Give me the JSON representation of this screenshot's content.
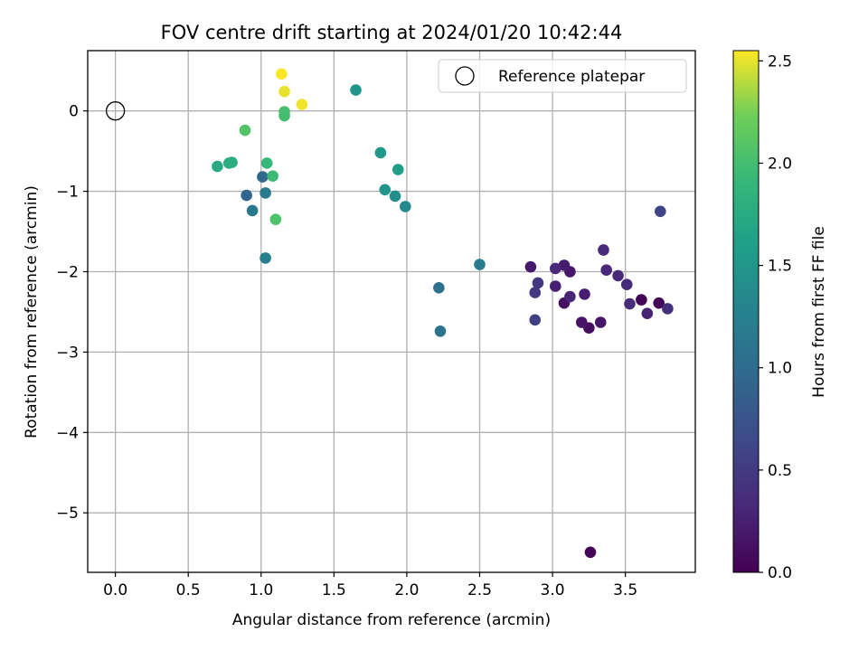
{
  "chart_data": {
    "type": "scatter",
    "title": "FOV centre drift starting at 2024/01/20 10:42:44",
    "xlabel": "Angular distance from reference (arcmin)",
    "ylabel": "Rotation from reference (arcmin)",
    "xlim": [
      -0.19,
      3.98
    ],
    "ylim": [
      -5.74,
      0.75
    ],
    "x_ticks": [
      0.0,
      0.5,
      1.0,
      1.5,
      2.0,
      2.5,
      3.0,
      3.5
    ],
    "x_tick_labels": [
      "0.0",
      "0.5",
      "1.0",
      "1.5",
      "2.0",
      "2.5",
      "3.0",
      "3.5"
    ],
    "y_ticks": [
      0,
      -1,
      -2,
      -3,
      -4,
      -5
    ],
    "y_tick_labels": [
      "0",
      "−1",
      "−2",
      "−3",
      "−4",
      "−5"
    ],
    "grid": true,
    "legend": {
      "position": "top-right",
      "entries": [
        "Reference platepar"
      ]
    },
    "reference_point": {
      "x": 0.0,
      "y": 0.0
    },
    "colorbar": {
      "label": "Hours from first FF file",
      "colormap": "viridis",
      "range": [
        0.0,
        2.55
      ],
      "ticks": [
        0.0,
        0.5,
        1.0,
        1.5,
        2.0,
        2.5
      ],
      "tick_labels": [
        "0.0",
        "0.5",
        "1.0",
        "1.5",
        "2.0",
        "2.5"
      ]
    },
    "points": [
      {
        "x": 3.26,
        "y": -5.49,
        "c": 0.02
      },
      {
        "x": 3.61,
        "y": -2.35,
        "c": 0.03
      },
      {
        "x": 3.73,
        "y": -2.39,
        "c": 0.04
      },
      {
        "x": 3.25,
        "y": -2.7,
        "c": 0.1
      },
      {
        "x": 3.08,
        "y": -2.39,
        "c": 0.12
      },
      {
        "x": 3.2,
        "y": -2.63,
        "c": 0.15
      },
      {
        "x": 3.33,
        "y": -2.63,
        "c": 0.17
      },
      {
        "x": 3.12,
        "y": -2.0,
        "c": 0.18
      },
      {
        "x": 2.85,
        "y": -1.94,
        "c": 0.2
      },
      {
        "x": 3.08,
        "y": -1.92,
        "c": 0.22
      },
      {
        "x": 3.22,
        "y": -2.28,
        "c": 0.24
      },
      {
        "x": 3.02,
        "y": -2.18,
        "c": 0.26
      },
      {
        "x": 3.65,
        "y": -2.52,
        "c": 0.28
      },
      {
        "x": 3.12,
        "y": -2.31,
        "c": 0.3
      },
      {
        "x": 3.02,
        "y": -1.96,
        "c": 0.32
      },
      {
        "x": 3.37,
        "y": -1.98,
        "c": 0.33
      },
      {
        "x": 3.45,
        "y": -2.05,
        "c": 0.34
      },
      {
        "x": 3.35,
        "y": -1.73,
        "c": 0.35
      },
      {
        "x": 3.51,
        "y": -2.16,
        "c": 0.37
      },
      {
        "x": 3.53,
        "y": -2.4,
        "c": 0.38
      },
      {
        "x": 3.79,
        "y": -2.46,
        "c": 0.4
      },
      {
        "x": 2.9,
        "y": -2.14,
        "c": 0.45
      },
      {
        "x": 2.88,
        "y": -2.26,
        "c": 0.48
      },
      {
        "x": 2.88,
        "y": -2.6,
        "c": 0.55
      },
      {
        "x": 3.74,
        "y": -1.25,
        "c": 0.58
      },
      {
        "x": 0.9,
        "y": -1.05,
        "c": 0.95
      },
      {
        "x": 1.01,
        "y": -0.82,
        "c": 0.97
      },
      {
        "x": 2.22,
        "y": -2.2,
        "c": 1.05
      },
      {
        "x": 2.23,
        "y": -2.74,
        "c": 1.1
      },
      {
        "x": 0.94,
        "y": -1.24,
        "c": 1.15
      },
      {
        "x": 1.03,
        "y": -1.02,
        "c": 1.18
      },
      {
        "x": 2.5,
        "y": -1.91,
        "c": 1.2
      },
      {
        "x": 1.03,
        "y": -1.83,
        "c": 1.25
      },
      {
        "x": 1.99,
        "y": -1.19,
        "c": 1.35
      },
      {
        "x": 1.92,
        "y": -1.06,
        "c": 1.4
      },
      {
        "x": 1.85,
        "y": -0.98,
        "c": 1.48
      },
      {
        "x": 1.82,
        "y": -0.52,
        "c": 1.52
      },
      {
        "x": 1.94,
        "y": -0.73,
        "c": 1.58
      },
      {
        "x": 1.65,
        "y": 0.26,
        "c": 1.5
      },
      {
        "x": 0.7,
        "y": -0.69,
        "c": 1.72
      },
      {
        "x": 0.78,
        "y": -0.65,
        "c": 1.75
      },
      {
        "x": 0.8,
        "y": -0.64,
        "c": 1.78
      },
      {
        "x": 1.04,
        "y": -0.65,
        "c": 1.92
      },
      {
        "x": 1.08,
        "y": -0.81,
        "c": 1.95
      },
      {
        "x": 1.16,
        "y": -0.01,
        "c": 2.02
      },
      {
        "x": 1.16,
        "y": -0.06,
        "c": 2.0
      },
      {
        "x": 1.1,
        "y": -1.35,
        "c": 2.05
      },
      {
        "x": 0.89,
        "y": -0.24,
        "c": 2.08
      },
      {
        "x": 1.14,
        "y": 0.46,
        "c": 2.55
      },
      {
        "x": 1.16,
        "y": 0.24,
        "c": 2.5
      },
      {
        "x": 1.28,
        "y": 0.08,
        "c": 2.52
      }
    ]
  }
}
